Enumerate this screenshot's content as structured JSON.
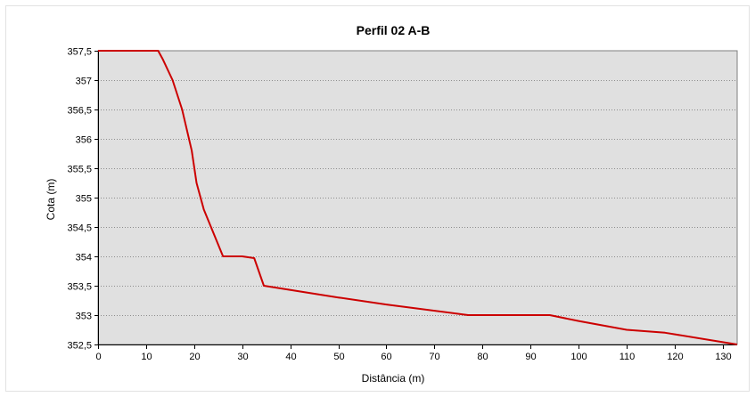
{
  "chart_data": {
    "type": "line",
    "title": "Perfil 02 A-B",
    "xlabel": "Distância (m)",
    "ylabel": "Cota (m)",
    "xlim": [
      0,
      133
    ],
    "ylim": [
      352.5,
      357.5
    ],
    "x_ticks": [
      0,
      10,
      20,
      30,
      40,
      50,
      60,
      70,
      80,
      90,
      100,
      110,
      120,
      130
    ],
    "x_tick_labels": [
      "0",
      "10",
      "20",
      "30",
      "40",
      "50",
      "60",
      "70",
      "80",
      "90",
      "100",
      "110",
      "120",
      "130"
    ],
    "y_ticks": [
      352.5,
      353,
      353.5,
      354,
      354.5,
      355,
      355.5,
      356,
      356.5,
      357,
      357.5
    ],
    "y_tick_labels": [
      "352,5",
      "353",
      "353,5",
      "354",
      "354,5",
      "355",
      "355,5",
      "356",
      "356,5",
      "357",
      "357,5"
    ],
    "grid": "horizontal dotted",
    "legend": "none",
    "series": [
      {
        "color": "#cc0000",
        "x": [
          0,
          12.5,
          13.5,
          15.5,
          17.5,
          19.5,
          20.5,
          22,
          24,
          26,
          30,
          32.5,
          34.5,
          50,
          60,
          77,
          94,
          100,
          110,
          118,
          133
        ],
        "y": [
          357.5,
          357.5,
          357.35,
          357,
          356.5,
          355.8,
          355.25,
          354.8,
          354.4,
          354,
          354,
          353.97,
          353.5,
          353.3,
          353.18,
          353,
          353,
          352.9,
          352.75,
          352.7,
          352.5
        ]
      }
    ]
  }
}
